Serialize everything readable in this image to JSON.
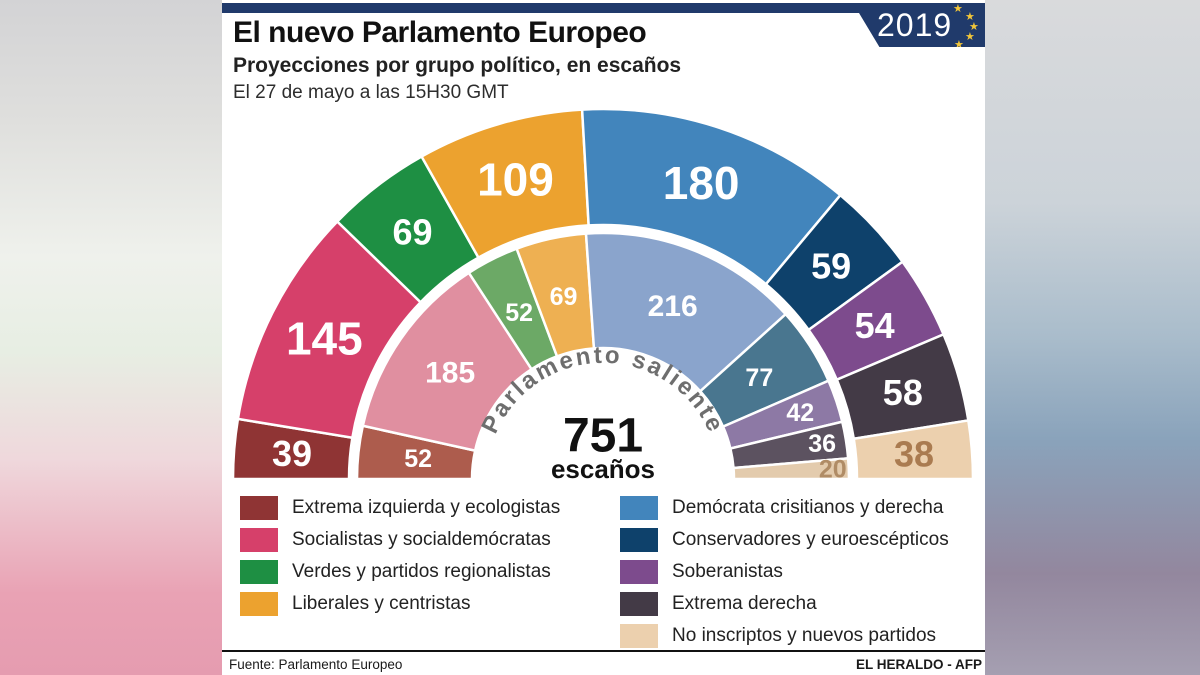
{
  "header": {
    "title": "El nuevo Parlamento Europeo",
    "subtitle": "Proyecciones por grupo político, en escaños",
    "timestamp": "El 27 de mayo a las 15H30 GMT",
    "year_badge": "2019",
    "badge_color": "#203a6b",
    "star_icon": "★",
    "star_color": "#f2c63a"
  },
  "chart_data": {
    "type": "hemicycle",
    "title": "Proyecciones por grupo político, en escaños",
    "center": {
      "total": "751",
      "unit": "escaños"
    },
    "inner_ring_title": "Parlamento saliente",
    "rings": [
      "nuevo parlamento (exterior)",
      "parlamento saliente (interior)"
    ],
    "groups": [
      {
        "label": "Extrema izquierda y ecologistas",
        "new_seats": 39,
        "old_seats": 52,
        "color": "#8f3434",
        "inner_color": "#ad5c4d"
      },
      {
        "label": "Socialistas y socialdemócratas",
        "new_seats": 145,
        "old_seats": 185,
        "color": "#d6406a",
        "inner_color": "#e08fa0"
      },
      {
        "label": "Verdes y partidos regionalistas",
        "new_seats": 69,
        "old_seats": 52,
        "color": "#1e8f43",
        "inner_color": "#6ca966"
      },
      {
        "label": "Liberales y centristas",
        "new_seats": 109,
        "old_seats": 69,
        "color": "#eca22f",
        "inner_color": "#eeb052"
      },
      {
        "label": "Demócrata crisitianos y derecha",
        "new_seats": 180,
        "old_seats": 216,
        "color": "#4285bc",
        "inner_color": "#8aa4cc"
      },
      {
        "label": "Conservadores y euroescépticos",
        "new_seats": 59,
        "old_seats": 77,
        "color": "#0e416b",
        "inner_color": "#49768f"
      },
      {
        "label": "Soberanistas",
        "new_seats": 54,
        "old_seats": 42,
        "color": "#7d4b8d",
        "inner_color": "#8d79a5"
      },
      {
        "label": "Extrema derecha",
        "new_seats": 58,
        "old_seats": 36,
        "color": "#433a46",
        "inner_color": "#5c5260"
      },
      {
        "label": "No inscriptos y nuevos partidos",
        "new_seats": 38,
        "old_seats": 20,
        "color": "#ecd0ae",
        "inner_color": "#e3cbad",
        "label_color": "#aa7b50",
        "inner_label_color": "#b08c66"
      }
    ]
  },
  "footer": {
    "source": "Fuente: Parlamento Europeo",
    "credit": "EL HERALDO - AFP"
  }
}
